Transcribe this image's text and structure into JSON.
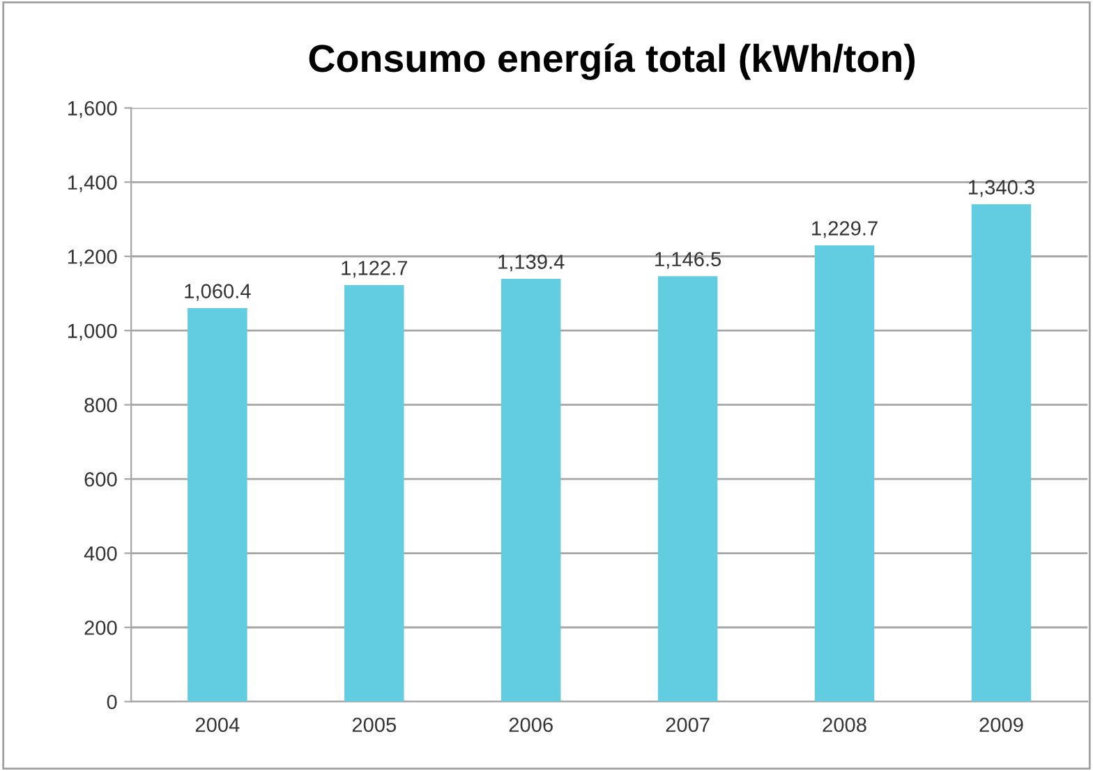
{
  "chart_data": {
    "type": "bar",
    "title": "Consumo energía total (kWh/ton)",
    "categories": [
      "2004",
      "2005",
      "2006",
      "2007",
      "2008",
      "2009"
    ],
    "values": [
      1060.4,
      1122.7,
      1139.4,
      1146.5,
      1229.7,
      1340.3
    ],
    "value_labels": [
      "1,060.4",
      "1,122.7",
      "1,139.4",
      "1,146.5",
      "1,229.7",
      "1,340.3"
    ],
    "color": "#62cde0",
    "ylim": [
      0,
      1600
    ],
    "yticks": [
      0,
      200,
      400,
      600,
      800,
      {
        "value": 1000,
        "label": "1,000"
      },
      {
        "value": 1200,
        "label": "1,200"
      },
      {
        "value": 1400,
        "label": "1,400"
      },
      {
        "value": 1600,
        "label": "1,600"
      }
    ],
    "grid": "y",
    "legend": false
  }
}
